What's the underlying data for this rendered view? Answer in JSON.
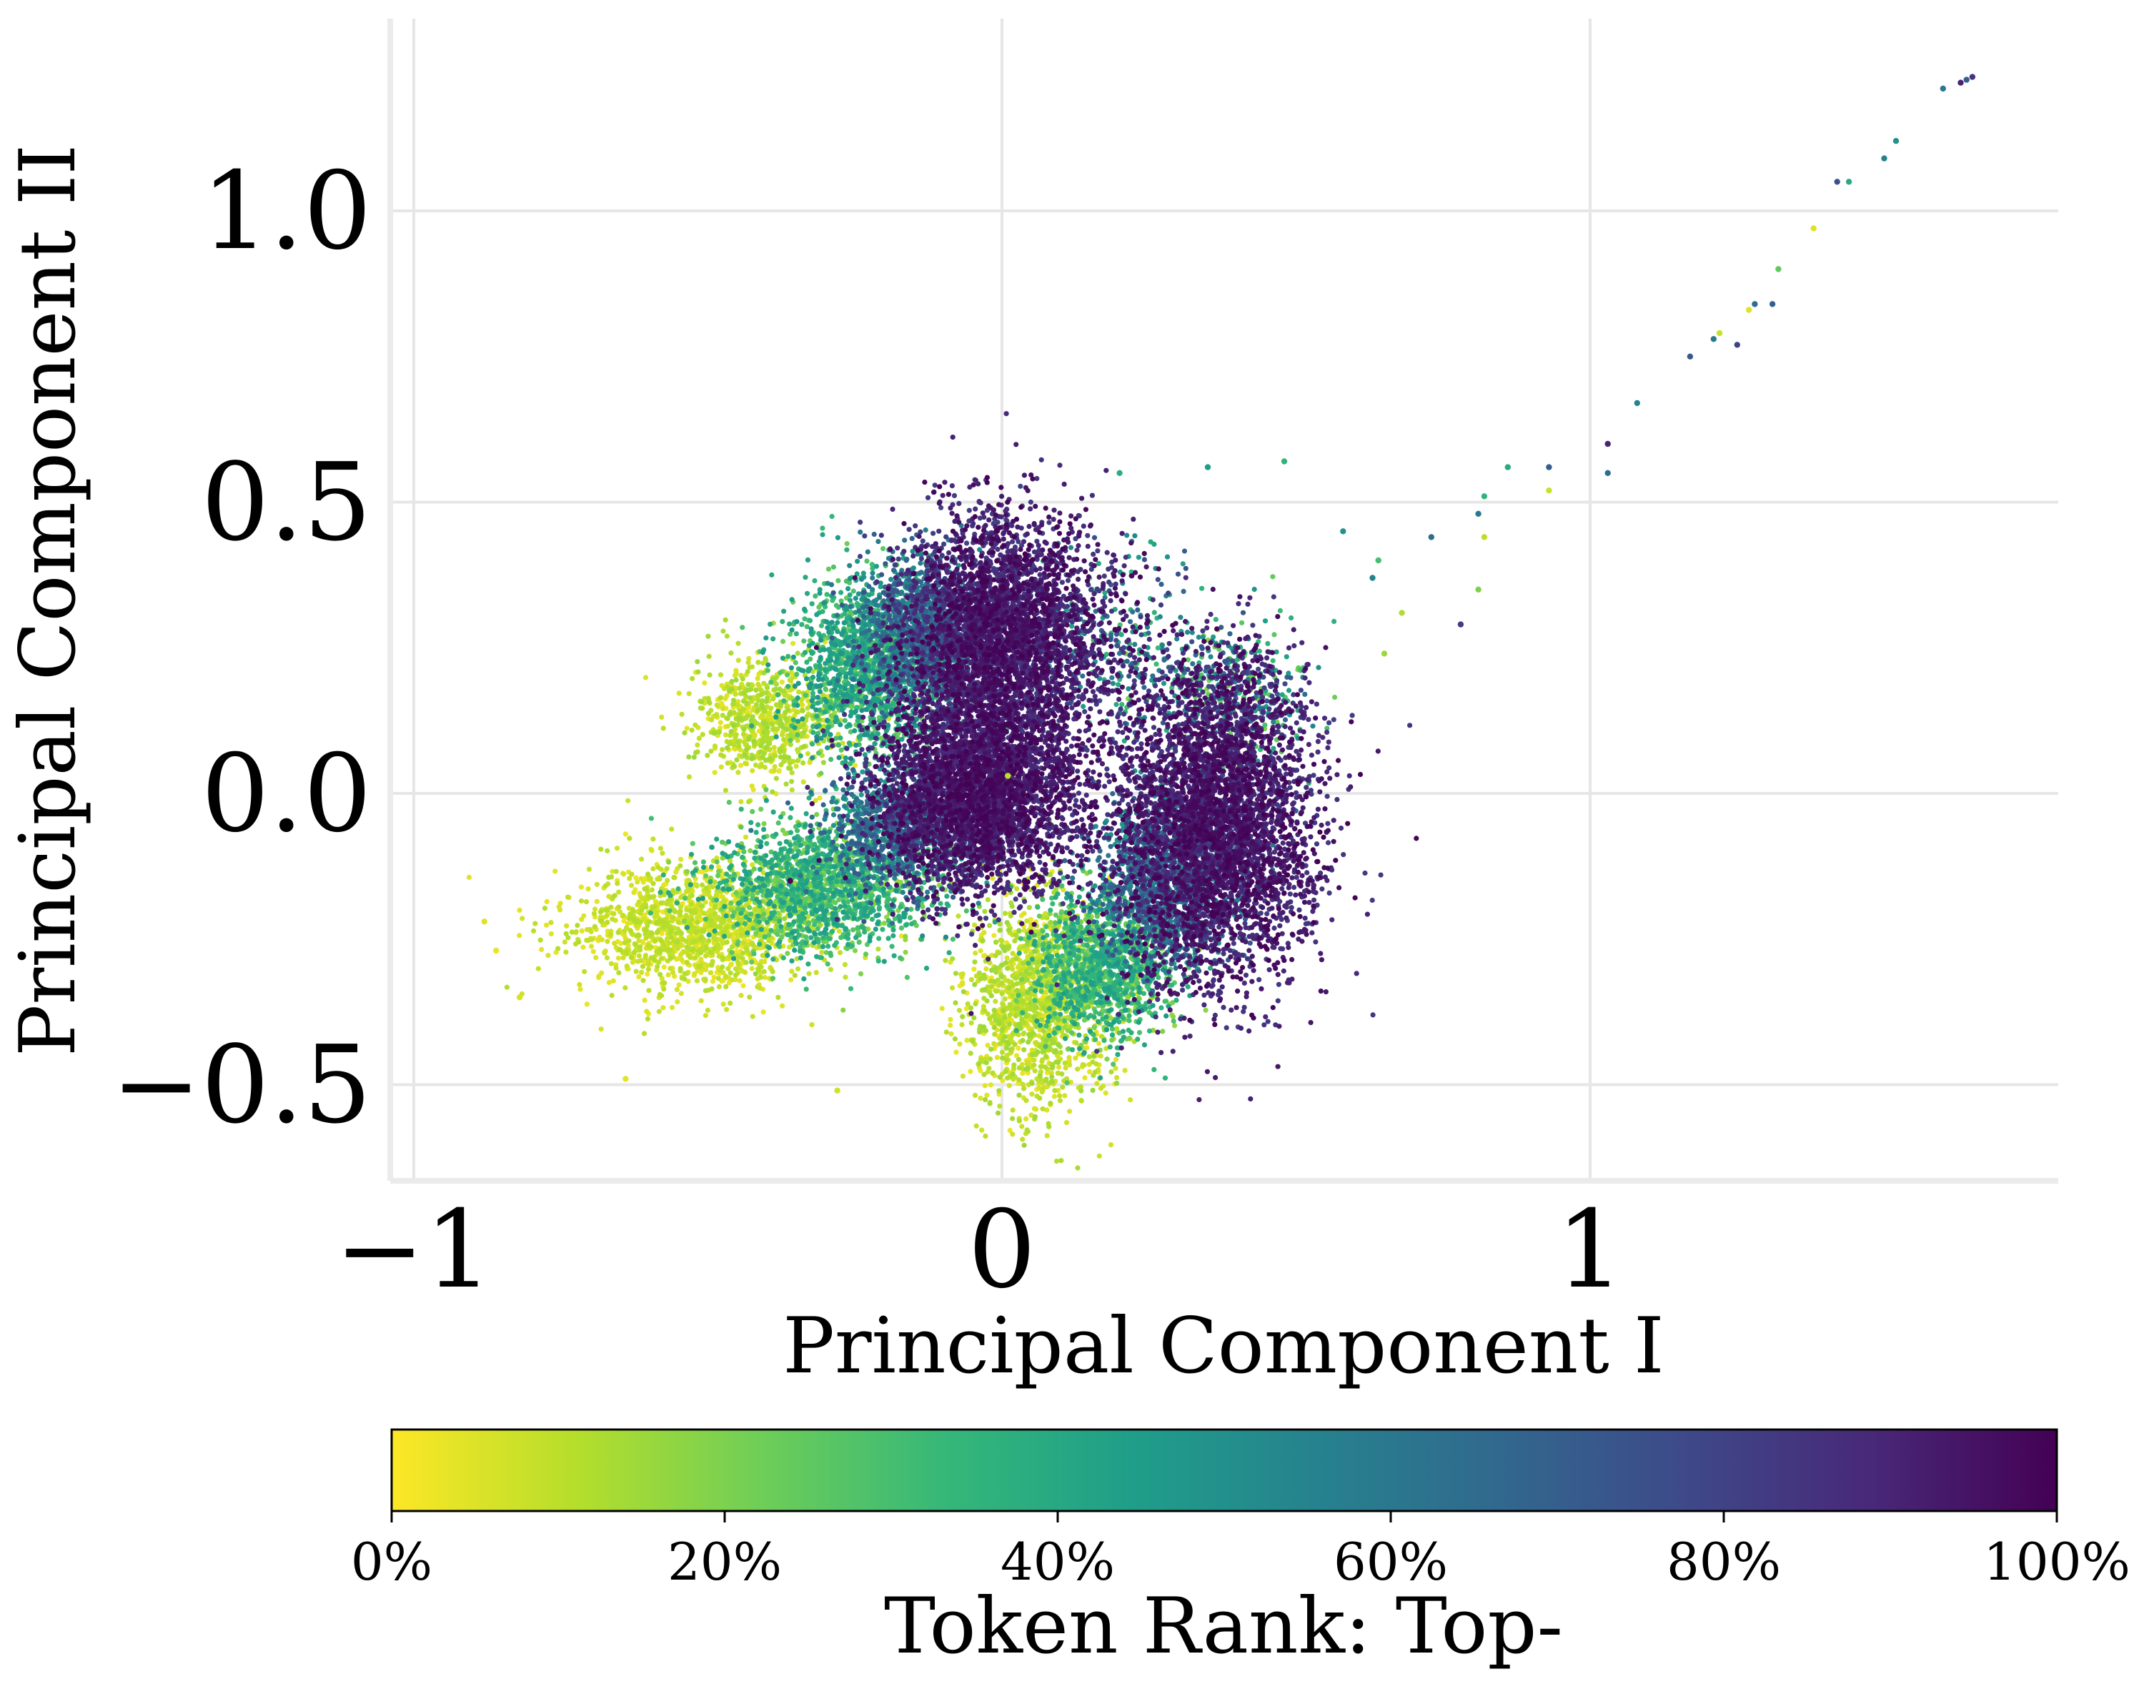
{
  "chart_data": {
    "type": "scatter",
    "title": "",
    "xlabel": "Principal Component I",
    "ylabel": "Principal Component II",
    "xlim": [
      -1.05,
      1.8
    ],
    "ylim": [
      -0.66,
      1.33
    ],
    "x_ticks": [
      -1,
      0,
      1
    ],
    "x_tick_labels": [
      "−1",
      "0",
      "1"
    ],
    "y_ticks": [
      -0.5,
      0.0,
      0.5,
      1.0
    ],
    "y_tick_labels": [
      "−0.5",
      "0.0",
      "0.5",
      "1.0"
    ],
    "grid": true,
    "colorbar": {
      "label": "Token Rank: Top-",
      "colormap": "viridis",
      "orientation": "horizontal",
      "position": "bottom",
      "range": [
        0,
        100
      ],
      "ticks": [
        0,
        20,
        40,
        60,
        80,
        100
      ],
      "tick_labels": [
        "0%",
        "20%",
        "40%",
        "60%",
        "80%",
        "100%"
      ],
      "stops": [
        "#fde725",
        "#b5de2b",
        "#6ece58",
        "#35b779",
        "#1f9e89",
        "#26828e",
        "#31688e",
        "#3e4989",
        "#482878",
        "#440154"
      ]
    },
    "clusters": [
      {
        "name": "left-arm-yellow",
        "center": [
          -0.52,
          -0.23
        ],
        "spread": [
          0.1,
          0.045
        ],
        "count": 1400,
        "rank_pct": [
          2,
          12
        ]
      },
      {
        "name": "left-arm-green",
        "center": [
          -0.3,
          -0.16
        ],
        "spread": [
          0.09,
          0.05
        ],
        "count": 1600,
        "rank_pct": [
          15,
          45
        ]
      },
      {
        "name": "upper-left-yellow",
        "center": [
          -0.4,
          0.13
        ],
        "spread": [
          0.06,
          0.05
        ],
        "count": 700,
        "rank_pct": [
          3,
          15
        ]
      },
      {
        "name": "upper-left-green",
        "center": [
          -0.22,
          0.22
        ],
        "spread": [
          0.07,
          0.07
        ],
        "count": 1600,
        "rank_pct": [
          20,
          50
        ]
      },
      {
        "name": "upper-teal",
        "center": [
          -0.14,
          0.28
        ],
        "spread": [
          0.05,
          0.06
        ],
        "count": 900,
        "rank_pct": [
          50,
          75
        ]
      },
      {
        "name": "upper-purple",
        "center": [
          0.0,
          0.27
        ],
        "spread": [
          0.085,
          0.1
        ],
        "count": 3800,
        "rank_pct": [
          80,
          100
        ]
      },
      {
        "name": "center-teal",
        "center": [
          -0.18,
          -0.06
        ],
        "spread": [
          0.06,
          0.05
        ],
        "count": 900,
        "rank_pct": [
          45,
          75
        ]
      },
      {
        "name": "center-purple",
        "center": [
          -0.04,
          0.0
        ],
        "spread": [
          0.085,
          0.08
        ],
        "count": 3800,
        "rank_pct": [
          82,
          100
        ]
      },
      {
        "name": "bottom-yellow",
        "center": [
          0.06,
          -0.36
        ],
        "spread": [
          0.06,
          0.09
        ],
        "count": 1300,
        "rank_pct": [
          2,
          15
        ]
      },
      {
        "name": "bottom-green",
        "center": [
          0.17,
          -0.3
        ],
        "spread": [
          0.06,
          0.06
        ],
        "count": 1300,
        "rank_pct": [
          15,
          45
        ]
      },
      {
        "name": "right-teal",
        "center": [
          0.28,
          -0.15
        ],
        "spread": [
          0.06,
          0.07
        ],
        "count": 1300,
        "rank_pct": [
          45,
          75
        ]
      },
      {
        "name": "right-purple",
        "center": [
          0.36,
          -0.06
        ],
        "spread": [
          0.085,
          0.13
        ],
        "count": 4200,
        "rank_pct": [
          82,
          100
        ]
      },
      {
        "name": "right-upper-mixed",
        "center": [
          0.38,
          0.17
        ],
        "spread": [
          0.07,
          0.06
        ],
        "count": 500,
        "rank_pct": [
          15,
          100
        ]
      },
      {
        "name": "gap-mixed",
        "center": [
          0.2,
          0.25
        ],
        "spread": [
          0.08,
          0.08
        ],
        "count": 350,
        "rank_pct": [
          30,
          100
        ]
      }
    ],
    "outliers": [
      {
        "x": 1.65,
        "y": 1.23,
        "rank_pct": 85
      },
      {
        "x": 1.64,
        "y": 1.225,
        "rank_pct": 70
      },
      {
        "x": 1.63,
        "y": 1.22,
        "rank_pct": 90
      },
      {
        "x": 1.6,
        "y": 1.21,
        "rank_pct": 60
      },
      {
        "x": 1.52,
        "y": 1.12,
        "rank_pct": 50
      },
      {
        "x": 1.5,
        "y": 1.09,
        "rank_pct": 55
      },
      {
        "x": 1.44,
        "y": 1.05,
        "rank_pct": 40
      },
      {
        "x": 1.42,
        "y": 1.05,
        "rank_pct": 75
      },
      {
        "x": 1.38,
        "y": 0.97,
        "rank_pct": 5
      },
      {
        "x": 1.32,
        "y": 0.9,
        "rank_pct": 25
      },
      {
        "x": 1.31,
        "y": 0.84,
        "rank_pct": 70
      },
      {
        "x": 1.28,
        "y": 0.84,
        "rank_pct": 65
      },
      {
        "x": 1.27,
        "y": 0.83,
        "rank_pct": 5
      },
      {
        "x": 1.22,
        "y": 0.79,
        "rank_pct": 8
      },
      {
        "x": 1.21,
        "y": 0.78,
        "rank_pct": 60
      },
      {
        "x": 1.25,
        "y": 0.77,
        "rank_pct": 80
      },
      {
        "x": 1.17,
        "y": 0.75,
        "rank_pct": 72
      },
      {
        "x": 1.08,
        "y": 0.67,
        "rank_pct": 55
      },
      {
        "x": 1.03,
        "y": 0.6,
        "rank_pct": 90
      },
      {
        "x": 1.03,
        "y": 0.55,
        "rank_pct": 65
      },
      {
        "x": 0.93,
        "y": 0.56,
        "rank_pct": 70
      },
      {
        "x": 0.86,
        "y": 0.56,
        "rank_pct": 40
      },
      {
        "x": 0.93,
        "y": 0.52,
        "rank_pct": 8
      },
      {
        "x": 0.82,
        "y": 0.51,
        "rank_pct": 35
      },
      {
        "x": 0.81,
        "y": 0.48,
        "rank_pct": 60
      },
      {
        "x": 0.82,
        "y": 0.44,
        "rank_pct": 10
      },
      {
        "x": 0.73,
        "y": 0.44,
        "rank_pct": 65
      },
      {
        "x": 0.64,
        "y": 0.4,
        "rank_pct": 30
      },
      {
        "x": 0.63,
        "y": 0.37,
        "rank_pct": 55
      },
      {
        "x": 0.68,
        "y": 0.31,
        "rank_pct": 12
      },
      {
        "x": 0.78,
        "y": 0.29,
        "rank_pct": 82
      },
      {
        "x": 0.81,
        "y": 0.35,
        "rank_pct": 20
      },
      {
        "x": 0.65,
        "y": 0.24,
        "rank_pct": 15
      },
      {
        "x": 0.58,
        "y": 0.45,
        "rank_pct": 50
      },
      {
        "x": 0.48,
        "y": 0.57,
        "rank_pct": 35
      },
      {
        "x": 0.35,
        "y": 0.56,
        "rank_pct": 45
      },
      {
        "x": 0.2,
        "y": 0.55,
        "rank_pct": 38
      },
      {
        "x": -0.88,
        "y": -0.22,
        "rank_pct": 5
      },
      {
        "x": -0.86,
        "y": -0.27,
        "rank_pct": 3
      },
      {
        "x": -0.82,
        "y": -0.35,
        "rank_pct": 6
      },
      {
        "x": -0.64,
        "y": -0.49,
        "rank_pct": 4
      },
      {
        "x": -0.28,
        "y": -0.51,
        "rank_pct": 7
      },
      {
        "x": -0.36,
        "y": -0.15,
        "rank_pct": 98
      },
      {
        "x": 0.01,
        "y": 0.03,
        "rank_pct": 10
      }
    ]
  }
}
